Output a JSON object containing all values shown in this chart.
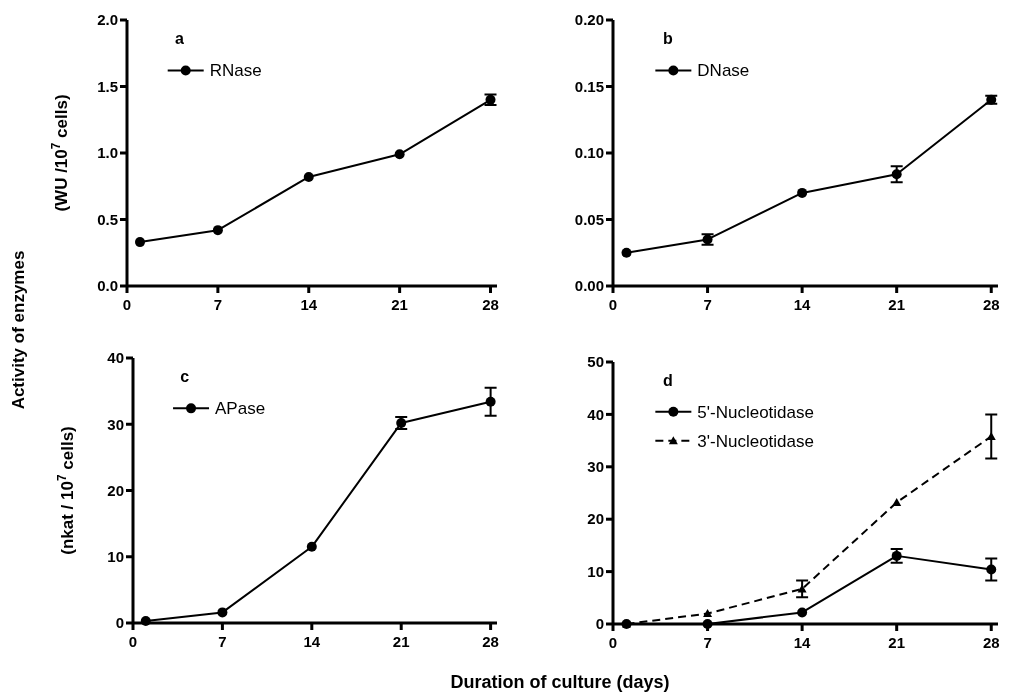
{
  "chart_data": [
    {
      "type": "line",
      "title": "a",
      "ylabel": "(WU /10$^{7}$ cells)",
      "annotations": [
        "Activity of enzymes"
      ],
      "x": [
        1,
        7,
        14,
        21,
        28
      ],
      "xlim": [
        0,
        28.5
      ],
      "xticks": [
        0,
        7,
        14,
        21,
        28
      ],
      "ylim": [
        0,
        2
      ],
      "yticks": [
        {
          "value": 0,
          "label": "0.0"
        },
        {
          "value": 0.5,
          "label": "0.5"
        },
        {
          "value": 1,
          "label": "1.0"
        },
        {
          "value": 1.5,
          "label": "1.5"
        },
        {
          "value": 2,
          "label": "2.0"
        }
      ],
      "legend": "top left",
      "grid": false,
      "series": [
        {
          "name": "RNase",
          "color": "#000000",
          "marker": "circle",
          "line_style": "solid",
          "values": [
            0.33,
            0.42,
            0.82,
            0.99,
            1.4
          ],
          "errors": [
            null,
            null,
            null,
            null,
            0.04
          ]
        }
      ]
    },
    {
      "type": "line",
      "title": "b",
      "x": [
        1,
        7,
        14,
        21,
        28
      ],
      "xlim": [
        0,
        28.5
      ],
      "xticks": [
        0,
        7,
        14,
        21,
        28
      ],
      "ylim": [
        0,
        0.2
      ],
      "yticks": [
        {
          "value": 0,
          "label": "0.00"
        },
        {
          "value": 0.05,
          "label": "0.05"
        },
        {
          "value": 0.1,
          "label": "0.10"
        },
        {
          "value": 0.15,
          "label": "0.15"
        },
        {
          "value": 0.2,
          "label": "0.20"
        }
      ],
      "legend": "top left",
      "grid": false,
      "series": [
        {
          "name": "DNase",
          "color": "#000000",
          "marker": "circle",
          "line_style": "solid",
          "values": [
            0.025,
            0.035,
            0.07,
            0.084,
            0.14
          ],
          "errors": [
            null,
            0.004,
            null,
            0.006,
            0.003
          ]
        }
      ]
    },
    {
      "type": "line",
      "title": "c",
      "ylabel": "(nkat / 10$^{7}$ cells)",
      "xlabel": "Duration of culture (days)",
      "x": [
        1,
        7,
        14,
        21,
        28
      ],
      "xlim": [
        0,
        28.5
      ],
      "xticks": [
        0,
        7,
        14,
        21,
        28
      ],
      "ylim": [
        0,
        40
      ],
      "yticks": [
        0,
        10,
        20,
        30,
        40
      ],
      "legend": "top left",
      "grid": false,
      "series": [
        {
          "name": "APase",
          "color": "#000000",
          "marker": "circle",
          "line_style": "solid",
          "values": [
            0.3,
            1.6,
            11.5,
            30.2,
            33.4
          ],
          "errors": [
            null,
            null,
            null,
            0.9,
            2.1
          ]
        }
      ]
    },
    {
      "type": "line",
      "title": "d",
      "x": [
        1,
        7,
        14,
        21,
        28
      ],
      "xlim": [
        0,
        28.5
      ],
      "xticks": [
        0,
        7,
        14,
        21,
        28
      ],
      "ylim": [
        0,
        50
      ],
      "yticks": [
        0,
        10,
        20,
        30,
        40,
        50
      ],
      "legend": "top left",
      "grid": false,
      "series": [
        {
          "name": "5'-Nucleotidase",
          "color": "#000000",
          "marker": "circle",
          "line_style": "solid",
          "values": [
            0,
            0,
            2.2,
            13.0,
            10.4
          ],
          "errors": [
            null,
            null,
            null,
            1.3,
            2.1
          ]
        },
        {
          "name": "3'-Nucleotidase",
          "color": "#000000",
          "marker": "triangle",
          "line_style": "dashed",
          "values": [
            0,
            2.0,
            6.7,
            23.2,
            35.8
          ],
          "errors": [
            null,
            null,
            1.6,
            null,
            4.2
          ]
        }
      ]
    }
  ]
}
